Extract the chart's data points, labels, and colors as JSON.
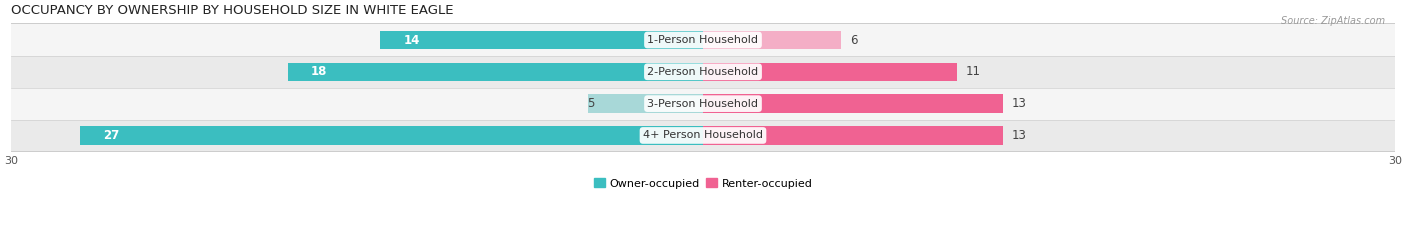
{
  "title": "OCCUPANCY BY OWNERSHIP BY HOUSEHOLD SIZE IN WHITE EAGLE",
  "source": "Source: ZipAtlas.com",
  "categories": [
    "1-Person Household",
    "2-Person Household",
    "3-Person Household",
    "4+ Person Household"
  ],
  "owner_values": [
    14,
    18,
    5,
    27
  ],
  "renter_values": [
    6,
    11,
    13,
    13
  ],
  "owner_color": "#3bbec0",
  "owner_color_light": "#a8d8d8",
  "renter_color": "#f06292",
  "renter_color_light": "#f4aec6",
  "row_bg_even": "#f5f5f5",
  "row_bg_odd": "#eaeaea",
  "x_max": 30,
  "x_min": -30,
  "label_fontsize": 8.5,
  "title_fontsize": 9.5,
  "axis_label_fontsize": 8,
  "legend_fontsize": 8,
  "cat_label_fontsize": 8
}
